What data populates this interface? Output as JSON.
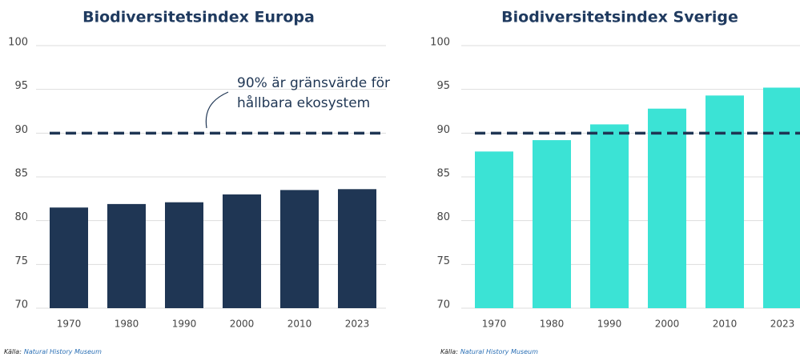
{
  "chart_data": [
    {
      "type": "bar",
      "title": "Biodiversitetsindex Europa",
      "categories": [
        "1970",
        "1980",
        "1990",
        "2000",
        "2010",
        "2023"
      ],
      "values": [
        81.5,
        81.9,
        82.1,
        83.0,
        83.5,
        83.6
      ],
      "color": "#1f3654",
      "ylim": [
        70,
        100
      ],
      "yticks": [
        70,
        75,
        80,
        85,
        90,
        95,
        100
      ],
      "grid": true,
      "threshold": 90,
      "annotation": [
        "90% är gränsvärde för",
        "hållbara ekosystem"
      ],
      "source_label": "Källa:",
      "source": "Natural History Museum"
    },
    {
      "type": "bar",
      "title": "Biodiversitetsindex Sverige",
      "categories": [
        "1970",
        "1980",
        "1990",
        "2000",
        "2010",
        "2023"
      ],
      "values": [
        87.9,
        89.2,
        91.0,
        92.8,
        94.3,
        95.2
      ],
      "color": "#3be3d5",
      "ylim": [
        70,
        100
      ],
      "yticks": [
        70,
        75,
        80,
        85,
        90,
        95,
        100
      ],
      "grid": true,
      "threshold": 90,
      "source_label": "Källa:",
      "source": "Natural History Museum"
    }
  ]
}
